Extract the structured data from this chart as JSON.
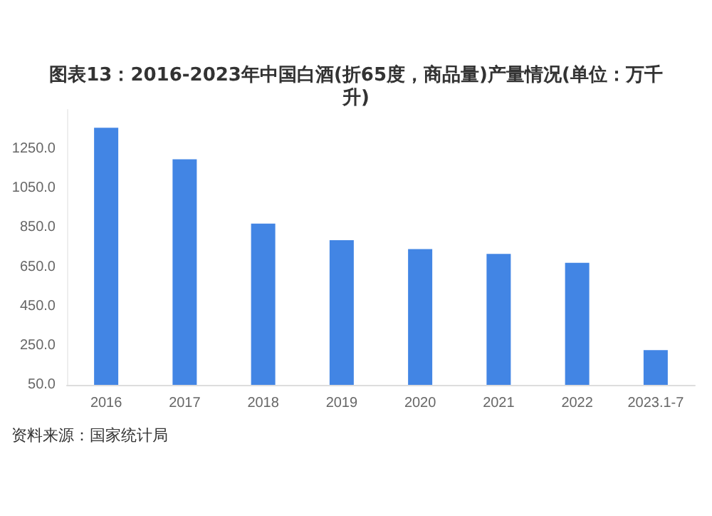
{
  "chart_data": {
    "type": "bar",
    "title": "图表13：2016-2023年中国白酒(折65度，商品量)产量情况(单位：万千升)",
    "categories": [
      "2016",
      "2017",
      "2018",
      "2019",
      "2020",
      "2021",
      "2022",
      "2023.1-7"
    ],
    "values": [
      1358,
      1198,
      871,
      786,
      741,
      716,
      671,
      227
    ],
    "color": "#4285e4",
    "ylim": [
      50,
      1450
    ],
    "yticks": [
      {
        "value": 50,
        "label": "50.0"
      },
      {
        "value": 250,
        "label": "250.0"
      },
      {
        "value": 450,
        "label": "450.0"
      },
      {
        "value": 650,
        "label": "650.0"
      },
      {
        "value": 850,
        "label": "850.0"
      },
      {
        "value": 1050,
        "label": "1050.0"
      },
      {
        "value": 1250,
        "label": "1250.0"
      }
    ],
    "grid": false,
    "annotations": [
      "资料来源：国家统计局"
    ]
  }
}
